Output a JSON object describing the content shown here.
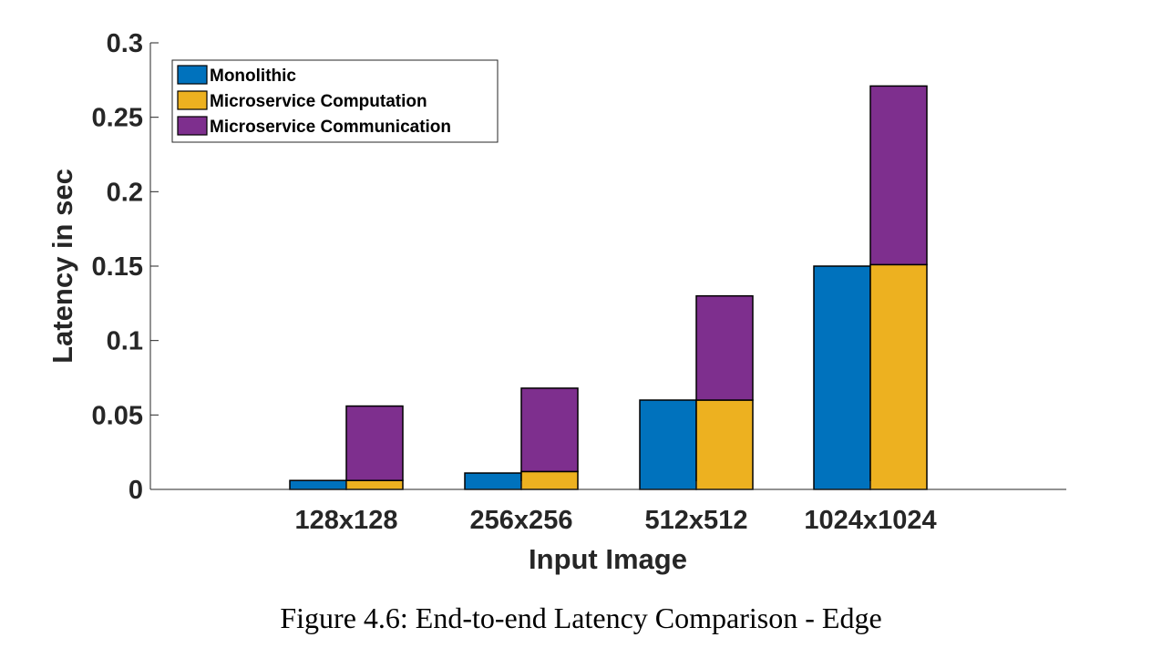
{
  "caption": "Figure 4.6: End-to-end Latency Comparison - Edge",
  "chart_data": {
    "type": "bar",
    "title": "",
    "xlabel": "Input Image",
    "ylabel": "Latency in sec",
    "categories": [
      "128x128",
      "256x256",
      "512x512",
      "1024x1024"
    ],
    "ylim": [
      0,
      0.3
    ],
    "yticks": [
      0,
      0.05,
      0.1,
      0.15,
      0.2,
      0.25,
      0.3
    ],
    "ytick_labels": [
      "0",
      "0.05",
      "0.1",
      "0.15",
      "0.2",
      "0.25",
      "0.3"
    ],
    "grid": false,
    "legend_position": "top-left",
    "layout": "grouped bars; second bar stacked (Computation + Communication)",
    "series": [
      {
        "name": "Monolithic",
        "values": [
          0.006,
          0.011,
          0.06,
          0.15
        ],
        "color": "#0072BD",
        "bar": "left"
      },
      {
        "name": "Microservice Computation",
        "values": [
          0.006,
          0.012,
          0.06,
          0.151
        ],
        "color": "#EDB120",
        "bar": "right",
        "stack": "bottom"
      },
      {
        "name": "Microservice Communication",
        "values": [
          0.05,
          0.056,
          0.07,
          0.12
        ],
        "color": "#7E2F8E",
        "bar": "right",
        "stack": "top"
      }
    ]
  }
}
